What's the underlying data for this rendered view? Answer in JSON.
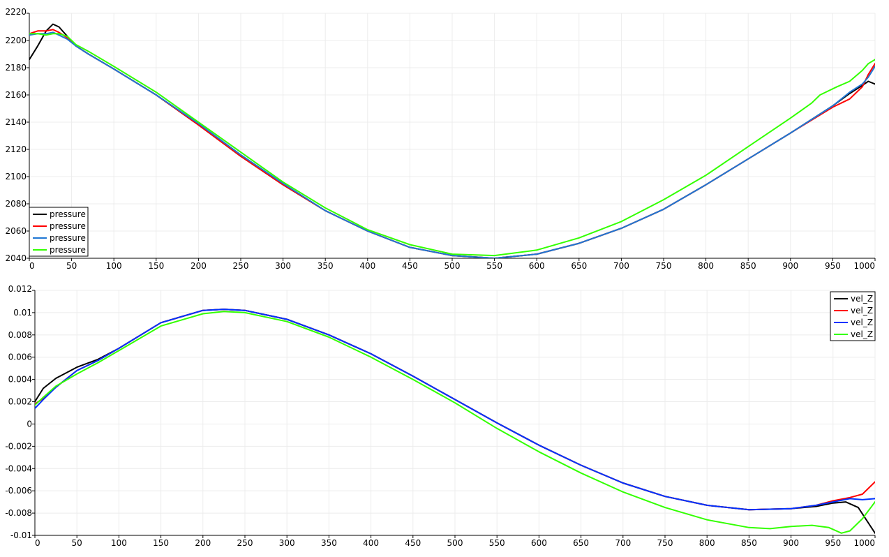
{
  "chart_data": [
    {
      "type": "line",
      "title": "",
      "xlabel": "",
      "ylabel": "",
      "xlim": [
        0,
        1000
      ],
      "ylim": [
        2040,
        2220
      ],
      "xticks": [
        0,
        50,
        100,
        150,
        200,
        250,
        300,
        350,
        400,
        450,
        500,
        550,
        600,
        650,
        700,
        750,
        800,
        850,
        900,
        950,
        1000
      ],
      "yticks": [
        2040,
        2060,
        2080,
        2100,
        2120,
        2140,
        2160,
        2180,
        2200,
        2220
      ],
      "grid": true,
      "legend_position": "bottom-left",
      "series": [
        {
          "name": "pressure",
          "color": "#000000",
          "points": [
            [
              0,
              2186
            ],
            [
              10,
              2196
            ],
            [
              20,
              2207
            ],
            [
              28,
              2212
            ],
            [
              35,
              2210
            ],
            [
              45,
              2203
            ],
            [
              55,
              2196
            ],
            [
              70,
              2190
            ],
            [
              100,
              2179
            ],
            [
              150,
              2160
            ],
            [
              200,
              2138
            ],
            [
              250,
              2115
            ],
            [
              300,
              2094
            ],
            [
              350,
              2075
            ],
            [
              400,
              2060
            ],
            [
              450,
              2048
            ],
            [
              500,
              2042
            ],
            [
              550,
              2040
            ],
            [
              600,
              2043
            ],
            [
              650,
              2051
            ],
            [
              700,
              2062
            ],
            [
              750,
              2076
            ],
            [
              800,
              2094
            ],
            [
              850,
              2113
            ],
            [
              900,
              2132
            ],
            [
              950,
              2152
            ],
            [
              970,
              2161
            ],
            [
              985,
              2167
            ],
            [
              992,
              2170
            ],
            [
              1000,
              2168
            ]
          ]
        },
        {
          "name": "pressure",
          "color": "#ff0000",
          "points": [
            [
              0,
              2205
            ],
            [
              10,
              2207
            ],
            [
              20,
              2207
            ],
            [
              28,
              2208
            ],
            [
              35,
              2206
            ],
            [
              45,
              2202
            ],
            [
              55,
              2196
            ],
            [
              70,
              2190
            ],
            [
              100,
              2179
            ],
            [
              150,
              2160
            ],
            [
              200,
              2138
            ],
            [
              250,
              2115
            ],
            [
              300,
              2094
            ],
            [
              350,
              2075
            ],
            [
              400,
              2060
            ],
            [
              450,
              2048
            ],
            [
              500,
              2042
            ],
            [
              550,
              2040
            ],
            [
              600,
              2043
            ],
            [
              650,
              2051
            ],
            [
              700,
              2062
            ],
            [
              750,
              2076
            ],
            [
              800,
              2094
            ],
            [
              850,
              2113
            ],
            [
              900,
              2132
            ],
            [
              950,
              2151
            ],
            [
              970,
              2157
            ],
            [
              985,
              2166
            ],
            [
              992,
              2175
            ],
            [
              1000,
              2183
            ]
          ]
        },
        {
          "name": "pressure",
          "color": "#1f77d4",
          "points": [
            [
              0,
              2204
            ],
            [
              10,
              2205
            ],
            [
              20,
              2205
            ],
            [
              28,
              2206
            ],
            [
              35,
              2204
            ],
            [
              45,
              2201
            ],
            [
              55,
              2196
            ],
            [
              70,
              2190
            ],
            [
              100,
              2179
            ],
            [
              150,
              2160
            ],
            [
              200,
              2139
            ],
            [
              250,
              2116
            ],
            [
              300,
              2095
            ],
            [
              350,
              2075
            ],
            [
              400,
              2060
            ],
            [
              450,
              2048
            ],
            [
              500,
              2042
            ],
            [
              550,
              2040
            ],
            [
              600,
              2043
            ],
            [
              650,
              2051
            ],
            [
              700,
              2062
            ],
            [
              750,
              2076
            ],
            [
              800,
              2094
            ],
            [
              850,
              2113
            ],
            [
              900,
              2132
            ],
            [
              950,
              2152
            ],
            [
              970,
              2162
            ],
            [
              985,
              2168
            ],
            [
              992,
              2173
            ],
            [
              1000,
              2181
            ]
          ]
        },
        {
          "name": "pressure",
          "color": "#33ff00",
          "points": [
            [
              0,
              2205
            ],
            [
              10,
              2205
            ],
            [
              20,
              2204
            ],
            [
              28,
              2205
            ],
            [
              35,
              2205
            ],
            [
              45,
              2203
            ],
            [
              55,
              2197
            ],
            [
              70,
              2192
            ],
            [
              100,
              2181
            ],
            [
              150,
              2162
            ],
            [
              200,
              2140
            ],
            [
              250,
              2118
            ],
            [
              300,
              2096
            ],
            [
              350,
              2077
            ],
            [
              400,
              2061
            ],
            [
              450,
              2050
            ],
            [
              500,
              2043
            ],
            [
              550,
              2042
            ],
            [
              600,
              2046
            ],
            [
              650,
              2055
            ],
            [
              700,
              2067
            ],
            [
              750,
              2083
            ],
            [
              800,
              2101
            ],
            [
              850,
              2122
            ],
            [
              900,
              2143
            ],
            [
              925,
              2154
            ],
            [
              935,
              2160
            ],
            [
              955,
              2166
            ],
            [
              970,
              2170
            ],
            [
              985,
              2178
            ],
            [
              992,
              2183
            ],
            [
              1000,
              2186
            ]
          ]
        }
      ]
    },
    {
      "type": "line",
      "title": "",
      "xlabel": "",
      "ylabel": "",
      "xlim": [
        0,
        1000
      ],
      "ylim": [
        -0.01,
        0.012
      ],
      "xticks": [
        0,
        50,
        100,
        150,
        200,
        250,
        300,
        350,
        400,
        450,
        500,
        550,
        600,
        650,
        700,
        750,
        800,
        850,
        900,
        950,
        1000
      ],
      "yticks": [
        -0.01,
        -0.008,
        -0.006,
        -0.004,
        -0.002,
        0,
        0.002,
        0.004,
        0.006,
        0.008,
        0.01,
        0.012
      ],
      "ytick_labels": [
        "-0.01",
        "-0.008",
        "-0.006",
        "-0.004",
        "-0.002",
        "0",
        "0.002",
        "0.004",
        "0.006",
        "0.008",
        "0.01",
        "0.012"
      ],
      "grid": true,
      "legend_position": "top-right",
      "series": [
        {
          "name": "vel_Z",
          "color": "#000000",
          "points": [
            [
              0,
              0.002
            ],
            [
              10,
              0.0032
            ],
            [
              25,
              0.0041
            ],
            [
              50,
              0.0051
            ],
            [
              75,
              0.0058
            ],
            [
              100,
              0.0068
            ],
            [
              150,
              0.0091
            ],
            [
              200,
              0.0102
            ],
            [
              225,
              0.0103
            ],
            [
              250,
              0.0102
            ],
            [
              300,
              0.0094
            ],
            [
              350,
              0.008
            ],
            [
              400,
              0.0063
            ],
            [
              450,
              0.0043
            ],
            [
              500,
              0.0022
            ],
            [
              550,
              0.0001
            ],
            [
              600,
              -0.0019
            ],
            [
              650,
              -0.0037
            ],
            [
              700,
              -0.0053
            ],
            [
              750,
              -0.0065
            ],
            [
              800,
              -0.0073
            ],
            [
              850,
              -0.0077
            ],
            [
              900,
              -0.0076
            ],
            [
              930,
              -0.0074
            ],
            [
              950,
              -0.0071
            ],
            [
              965,
              -0.007
            ],
            [
              980,
              -0.0075
            ],
            [
              1000,
              -0.0098
            ]
          ]
        },
        {
          "name": "vel_Z",
          "color": "#ff0000",
          "points": [
            [
              0,
              0.0018
            ],
            [
              10,
              0.0023
            ],
            [
              25,
              0.0033
            ],
            [
              50,
              0.0048
            ],
            [
              75,
              0.0057
            ],
            [
              100,
              0.0068
            ],
            [
              150,
              0.0091
            ],
            [
              200,
              0.0102
            ],
            [
              225,
              0.0103
            ],
            [
              250,
              0.0102
            ],
            [
              300,
              0.0094
            ],
            [
              350,
              0.008
            ],
            [
              400,
              0.0063
            ],
            [
              450,
              0.0043
            ],
            [
              500,
              0.0022
            ],
            [
              550,
              0.0001
            ],
            [
              600,
              -0.0019
            ],
            [
              650,
              -0.0037
            ],
            [
              700,
              -0.0053
            ],
            [
              750,
              -0.0065
            ],
            [
              800,
              -0.0073
            ],
            [
              850,
              -0.0077
            ],
            [
              900,
              -0.0076
            ],
            [
              930,
              -0.0073
            ],
            [
              950,
              -0.0069
            ],
            [
              970,
              -0.0066
            ],
            [
              985,
              -0.0063
            ],
            [
              1000,
              -0.0052
            ]
          ]
        },
        {
          "name": "vel_Z",
          "color": "#0033ff",
          "points": [
            [
              0,
              0.0014
            ],
            [
              10,
              0.0022
            ],
            [
              25,
              0.0033
            ],
            [
              50,
              0.0048
            ],
            [
              75,
              0.0057
            ],
            [
              100,
              0.0068
            ],
            [
              150,
              0.0091
            ],
            [
              200,
              0.0102
            ],
            [
              225,
              0.0103
            ],
            [
              250,
              0.0102
            ],
            [
              300,
              0.0094
            ],
            [
              350,
              0.008
            ],
            [
              400,
              0.0063
            ],
            [
              450,
              0.0043
            ],
            [
              500,
              0.0022
            ],
            [
              550,
              0.0001
            ],
            [
              600,
              -0.0019
            ],
            [
              650,
              -0.0037
            ],
            [
              700,
              -0.0053
            ],
            [
              750,
              -0.0065
            ],
            [
              800,
              -0.0073
            ],
            [
              850,
              -0.0077
            ],
            [
              900,
              -0.0076
            ],
            [
              930,
              -0.0073
            ],
            [
              950,
              -0.007
            ],
            [
              970,
              -0.0067
            ],
            [
              985,
              -0.0068
            ],
            [
              1000,
              -0.0067
            ]
          ]
        },
        {
          "name": "vel_Z",
          "color": "#33ff00",
          "points": [
            [
              0,
              0.0017
            ],
            [
              10,
              0.0024
            ],
            [
              25,
              0.0034
            ],
            [
              50,
              0.0045
            ],
            [
              75,
              0.0055
            ],
            [
              100,
              0.0066
            ],
            [
              150,
              0.0088
            ],
            [
              200,
              0.0099
            ],
            [
              225,
              0.0101
            ],
            [
              250,
              0.01
            ],
            [
              300,
              0.0092
            ],
            [
              350,
              0.0078
            ],
            [
              400,
              0.006
            ],
            [
              450,
              0.004
            ],
            [
              500,
              0.0019
            ],
            [
              550,
              -0.0004
            ],
            [
              600,
              -0.0025
            ],
            [
              650,
              -0.0044
            ],
            [
              700,
              -0.0061
            ],
            [
              750,
              -0.0075
            ],
            [
              800,
              -0.0086
            ],
            [
              850,
              -0.0093
            ],
            [
              875,
              -0.0094
            ],
            [
              900,
              -0.0092
            ],
            [
              925,
              -0.0091
            ],
            [
              945,
              -0.0093
            ],
            [
              960,
              -0.0098
            ],
            [
              970,
              -0.0096
            ],
            [
              985,
              -0.0085
            ],
            [
              1000,
              -0.007
            ]
          ]
        }
      ]
    }
  ]
}
